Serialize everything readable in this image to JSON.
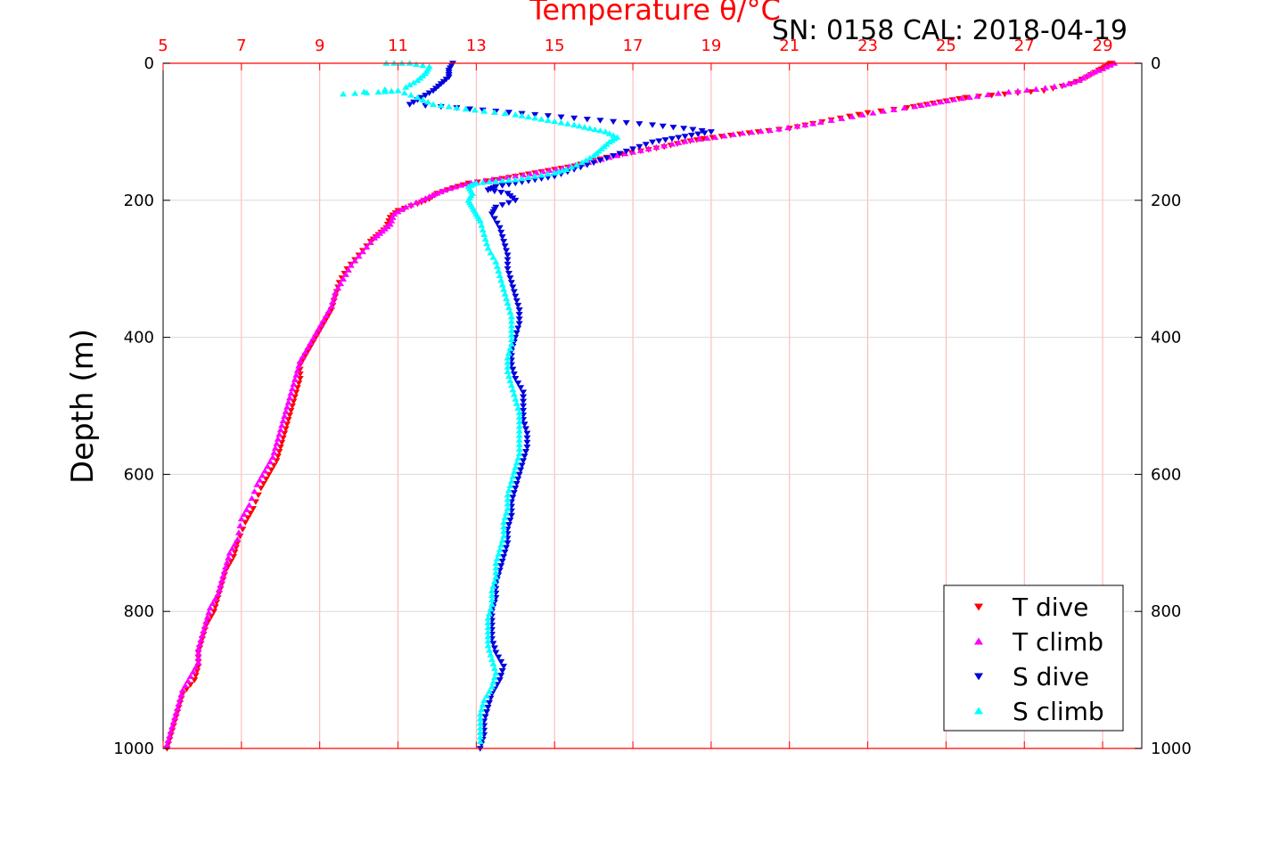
{
  "chart_data": {
    "type": "scatter",
    "title": "Temperature θ/°C",
    "annotation": "SN: 0158  CAL: 2018-04-19",
    "ylabel": "Depth (m)",
    "xlim": [
      5,
      30
    ],
    "ylim": [
      1000,
      0
    ],
    "x_ticks": [
      "5",
      "7",
      "9",
      "11",
      "13",
      "15",
      "17",
      "19",
      "21",
      "23",
      "25",
      "27",
      "29"
    ],
    "y_ticks": [
      "0",
      "200",
      "400",
      "600",
      "800",
      "1000"
    ],
    "x_tick_values": [
      5,
      7,
      9,
      11,
      13,
      15,
      17,
      19,
      21,
      23,
      25,
      27,
      29
    ],
    "y_tick_values": [
      0,
      200,
      400,
      600,
      800,
      1000
    ],
    "grid": true,
    "legend_position": "bottom-right",
    "colors": {
      "title": "#ff0000",
      "x_axis": "#ff0000",
      "grid_x": "#ffb0b0",
      "grid_y": "#d9d9d9"
    },
    "series": [
      {
        "name": "T dive",
        "marker": "triangle-down",
        "color": "#ff0000",
        "points": [
          [
            29.2,
            0
          ],
          [
            29.1,
            5
          ],
          [
            28.9,
            10
          ],
          [
            28.6,
            20
          ],
          [
            28.2,
            30
          ],
          [
            27.5,
            40
          ],
          [
            26.5,
            45
          ],
          [
            25.5,
            50
          ],
          [
            25,
            55
          ],
          [
            24.5,
            60
          ],
          [
            24,
            65
          ],
          [
            23,
            72
          ],
          [
            22.3,
            80
          ],
          [
            21.6,
            88
          ],
          [
            21,
            95
          ],
          [
            20.2,
            100
          ],
          [
            19.5,
            105
          ],
          [
            18.8,
            110
          ],
          [
            18.3,
            115
          ],
          [
            17.8,
            122
          ],
          [
            17.2,
            128
          ],
          [
            16.5,
            135
          ],
          [
            16,
            142
          ],
          [
            15.5,
            150
          ],
          [
            15,
            155
          ],
          [
            14.5,
            160
          ],
          [
            14,
            165
          ],
          [
            13.5,
            170
          ],
          [
            12.8,
            175
          ],
          [
            12.4,
            182
          ],
          [
            12,
            190
          ],
          [
            11.8,
            198
          ],
          [
            11.5,
            205
          ],
          [
            11,
            215
          ],
          [
            10.8,
            225
          ],
          [
            10.7,
            240
          ],
          [
            10.5,
            250
          ],
          [
            10.3,
            260
          ],
          [
            10,
            280
          ],
          [
            9.7,
            300
          ],
          [
            9.5,
            320
          ],
          [
            9.4,
            340
          ],
          [
            9.3,
            360
          ],
          [
            9.1,
            380
          ],
          [
            8.9,
            400
          ],
          [
            8.7,
            420
          ],
          [
            8.5,
            440
          ],
          [
            8.5,
            460
          ],
          [
            8.4,
            480
          ],
          [
            8.3,
            500
          ],
          [
            8.2,
            520
          ],
          [
            8.1,
            540
          ],
          [
            8,
            560
          ],
          [
            7.9,
            580
          ],
          [
            7.7,
            600
          ],
          [
            7.5,
            620
          ],
          [
            7.3,
            650
          ],
          [
            7.1,
            670
          ],
          [
            6.9,
            700
          ],
          [
            6.8,
            720
          ],
          [
            6.6,
            740
          ],
          [
            6.5,
            760
          ],
          [
            6.4,
            780
          ],
          [
            6.3,
            800
          ],
          [
            6.1,
            820
          ],
          [
            6,
            840
          ],
          [
            5.9,
            860
          ],
          [
            5.9,
            880
          ],
          [
            5.8,
            900
          ],
          [
            5.5,
            920
          ],
          [
            5.4,
            940
          ],
          [
            5.3,
            960
          ],
          [
            5.2,
            980
          ],
          [
            5.1,
            1000
          ]
        ]
      },
      {
        "name": "T climb",
        "marker": "triangle-up",
        "color": "#ff00ff",
        "points": [
          [
            29.3,
            0
          ],
          [
            29,
            8
          ],
          [
            28.7,
            15
          ],
          [
            28.4,
            25
          ],
          [
            28,
            32
          ],
          [
            27.3,
            38
          ],
          [
            26.6,
            42
          ],
          [
            25.8,
            48
          ],
          [
            25.2,
            53
          ],
          [
            24.7,
            58
          ],
          [
            24.2,
            63
          ],
          [
            23.4,
            70
          ],
          [
            22.6,
            78
          ],
          [
            21.8,
            86
          ],
          [
            21.2,
            92
          ],
          [
            20.5,
            98
          ],
          [
            19.8,
            102
          ],
          [
            19.1,
            108
          ],
          [
            18.5,
            112
          ],
          [
            18,
            118
          ],
          [
            17.4,
            125
          ],
          [
            16.8,
            132
          ],
          [
            16.2,
            140
          ],
          [
            15.7,
            147
          ],
          [
            15.2,
            153
          ],
          [
            14.7,
            158
          ],
          [
            14.2,
            163
          ],
          [
            13.6,
            168
          ],
          [
            13,
            173
          ],
          [
            12.6,
            178
          ],
          [
            12.2,
            185
          ],
          [
            11.9,
            192
          ],
          [
            11.6,
            200
          ],
          [
            11.2,
            210
          ],
          [
            10.9,
            220
          ],
          [
            10.8,
            235
          ],
          [
            10.6,
            245
          ],
          [
            10.4,
            255
          ],
          [
            10.1,
            275
          ],
          [
            9.8,
            295
          ],
          [
            9.6,
            315
          ],
          [
            9.4,
            335
          ],
          [
            9.3,
            355
          ],
          [
            9.1,
            375
          ],
          [
            8.9,
            395
          ],
          [
            8.7,
            415
          ],
          [
            8.5,
            435
          ],
          [
            8.4,
            455
          ],
          [
            8.3,
            475
          ],
          [
            8.2,
            495
          ],
          [
            8.1,
            515
          ],
          [
            8,
            535
          ],
          [
            7.9,
            555
          ],
          [
            7.8,
            575
          ],
          [
            7.6,
            595
          ],
          [
            7.4,
            615
          ],
          [
            7.2,
            645
          ],
          [
            7,
            665
          ],
          [
            6.9,
            695
          ],
          [
            6.7,
            715
          ],
          [
            6.6,
            735
          ],
          [
            6.5,
            755
          ],
          [
            6.4,
            775
          ],
          [
            6.2,
            795
          ],
          [
            6.1,
            815
          ],
          [
            6,
            835
          ],
          [
            5.9,
            855
          ],
          [
            5.9,
            875
          ],
          [
            5.7,
            895
          ],
          [
            5.5,
            915
          ],
          [
            5.4,
            935
          ],
          [
            5.3,
            955
          ],
          [
            5.2,
            975
          ],
          [
            5.1,
            995
          ]
        ]
      },
      {
        "name": "S dive",
        "marker": "triangle-down",
        "color": "#0000dd",
        "points": [
          [
            12.4,
            0
          ],
          [
            12.3,
            10
          ],
          [
            12.3,
            20
          ],
          [
            12.1,
            30
          ],
          [
            11.9,
            40
          ],
          [
            11.6,
            50
          ],
          [
            11.3,
            60
          ],
          [
            12.5,
            65
          ],
          [
            13.5,
            70
          ],
          [
            14.5,
            75
          ],
          [
            15.5,
            80
          ],
          [
            16.5,
            85
          ],
          [
            17.5,
            90
          ],
          [
            18.3,
            95
          ],
          [
            19,
            100
          ],
          [
            18.5,
            105
          ],
          [
            18,
            110
          ],
          [
            17.5,
            115
          ],
          [
            17,
            125
          ],
          [
            16.5,
            135
          ],
          [
            16,
            145
          ],
          [
            15.5,
            155
          ],
          [
            15,
            165
          ],
          [
            14.5,
            170
          ],
          [
            14,
            175
          ],
          [
            13.5,
            180
          ],
          [
            13.3,
            185
          ],
          [
            13.8,
            190
          ],
          [
            14,
            200
          ],
          [
            13.5,
            210
          ],
          [
            13.4,
            220
          ],
          [
            13.6,
            240
          ],
          [
            13.7,
            260
          ],
          [
            13.8,
            280
          ],
          [
            13.8,
            300
          ],
          [
            13.9,
            320
          ],
          [
            14,
            340
          ],
          [
            14.1,
            360
          ],
          [
            14.1,
            380
          ],
          [
            14,
            400
          ],
          [
            13.9,
            420
          ],
          [
            13.9,
            440
          ],
          [
            14,
            460
          ],
          [
            14.2,
            480
          ],
          [
            14.2,
            500
          ],
          [
            14.2,
            520
          ],
          [
            14.3,
            540
          ],
          [
            14.3,
            560
          ],
          [
            14.2,
            580
          ],
          [
            14.1,
            600
          ],
          [
            14,
            620
          ],
          [
            13.9,
            640
          ],
          [
            13.9,
            660
          ],
          [
            13.8,
            680
          ],
          [
            13.8,
            700
          ],
          [
            13.7,
            720
          ],
          [
            13.6,
            740
          ],
          [
            13.5,
            760
          ],
          [
            13.5,
            780
          ],
          [
            13.4,
            800
          ],
          [
            13.4,
            820
          ],
          [
            13.4,
            840
          ],
          [
            13.5,
            860
          ],
          [
            13.7,
            880
          ],
          [
            13.6,
            900
          ],
          [
            13.4,
            920
          ],
          [
            13.3,
            940
          ],
          [
            13.2,
            960
          ],
          [
            13.2,
            980
          ],
          [
            13.1,
            1000
          ]
        ]
      },
      {
        "name": "S climb",
        "marker": "triangle-up",
        "color": "#00ffff",
        "points": [
          [
            10.7,
            0
          ],
          [
            11.3,
            0
          ],
          [
            11.8,
            5
          ],
          [
            11.7,
            15
          ],
          [
            11.5,
            25
          ],
          [
            11.2,
            35
          ],
          [
            9.6,
            45
          ],
          [
            10.5,
            42
          ],
          [
            11,
            40
          ],
          [
            11.5,
            50
          ],
          [
            11.9,
            60
          ],
          [
            12.5,
            65
          ],
          [
            13.2,
            70
          ],
          [
            14,
            75
          ],
          [
            14.5,
            80
          ],
          [
            15,
            85
          ],
          [
            15.5,
            90
          ],
          [
            15.9,
            95
          ],
          [
            16.3,
            100
          ],
          [
            16.6,
            108
          ],
          [
            16.4,
            115
          ],
          [
            16.2,
            125
          ],
          [
            16,
            135
          ],
          [
            15.7,
            145
          ],
          [
            15.3,
            155
          ],
          [
            15,
            160
          ],
          [
            14.5,
            165
          ],
          [
            14,
            170
          ],
          [
            13.5,
            172
          ],
          [
            13,
            175
          ],
          [
            12.8,
            180
          ],
          [
            12.9,
            190
          ],
          [
            12.8,
            200
          ],
          [
            12.9,
            210
          ],
          [
            13,
            220
          ],
          [
            13.1,
            230
          ],
          [
            13.2,
            250
          ],
          [
            13.3,
            270
          ],
          [
            13.5,
            290
          ],
          [
            13.6,
            310
          ],
          [
            13.7,
            330
          ],
          [
            13.8,
            350
          ],
          [
            13.9,
            370
          ],
          [
            13.9,
            390
          ],
          [
            13.9,
            410
          ],
          [
            13.8,
            430
          ],
          [
            13.8,
            450
          ],
          [
            13.9,
            470
          ],
          [
            14,
            490
          ],
          [
            14.1,
            510
          ],
          [
            14.1,
            530
          ],
          [
            14.1,
            550
          ],
          [
            14.1,
            570
          ],
          [
            14,
            590
          ],
          [
            13.9,
            610
          ],
          [
            13.8,
            630
          ],
          [
            13.8,
            650
          ],
          [
            13.7,
            670
          ],
          [
            13.7,
            690
          ],
          [
            13.6,
            710
          ],
          [
            13.5,
            730
          ],
          [
            13.5,
            750
          ],
          [
            13.4,
            770
          ],
          [
            13.4,
            790
          ],
          [
            13.3,
            810
          ],
          [
            13.3,
            830
          ],
          [
            13.3,
            850
          ],
          [
            13.4,
            870
          ],
          [
            13.5,
            890
          ],
          [
            13.4,
            910
          ],
          [
            13.2,
            930
          ],
          [
            13.1,
            950
          ],
          [
            13.1,
            970
          ],
          [
            13.1,
            990
          ]
        ]
      }
    ]
  }
}
